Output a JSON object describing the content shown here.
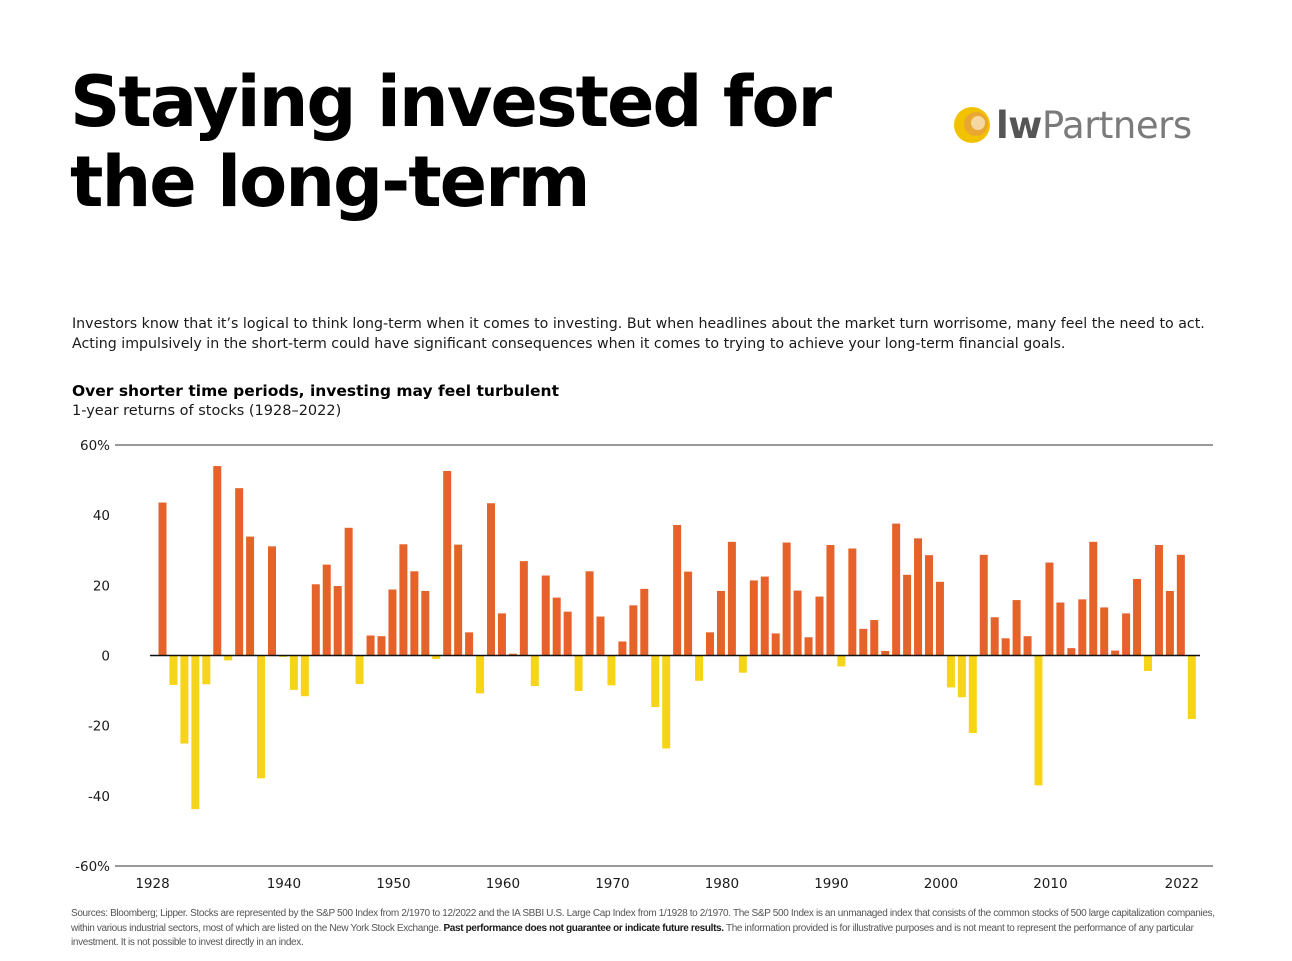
{
  "header": {
    "title_line1": "Staying invested for",
    "title_line2": "the long-term",
    "logo_part1": "lw",
    "logo_part2": "Partners"
  },
  "intro": {
    "line1": "Investors know that it’s logical to think long-term when it comes to investing. But when headlines about the market turn worrisome, many feel the need to act.",
    "line2": "Acting impulsively in the short-term could have significant consequences when it comes to trying to achieve your long-term financial goals."
  },
  "colors": {
    "positive": "#e5622a",
    "negative": "#f6d417",
    "logo_outer": "#f2c200",
    "logo_inner": "#e8a23a"
  },
  "chart_data": {
    "type": "bar",
    "title": "Over shorter time periods, investing may feel turbulent",
    "subtitle": "1-year returns of stocks (1928–2022)",
    "ylim": [
      -60,
      60
    ],
    "y_ticks": [
      {
        "value": 60,
        "label": "60%"
      },
      {
        "value": 40,
        "label": "40"
      },
      {
        "value": 20,
        "label": "20"
      },
      {
        "value": 0,
        "label": "0"
      },
      {
        "value": -20,
        "label": "-20"
      },
      {
        "value": -40,
        "label": "-40"
      },
      {
        "value": -60,
        "label": "-60%"
      }
    ],
    "x_ticks": [
      1928,
      1940,
      1950,
      1960,
      1970,
      1980,
      1990,
      2000,
      2010,
      2022
    ],
    "years": [
      1928,
      1929,
      1930,
      1931,
      1932,
      1933,
      1934,
      1935,
      1936,
      1937,
      1938,
      1939,
      1940,
      1941,
      1942,
      1943,
      1944,
      1945,
      1946,
      1947,
      1948,
      1949,
      1950,
      1951,
      1952,
      1953,
      1954,
      1955,
      1956,
      1957,
      1958,
      1959,
      1960,
      1961,
      1962,
      1963,
      1964,
      1965,
      1966,
      1967,
      1968,
      1969,
      1970,
      1971,
      1972,
      1973,
      1974,
      1975,
      1976,
      1977,
      1978,
      1979,
      1980,
      1981,
      1982,
      1983,
      1984,
      1985,
      1986,
      1987,
      1988,
      1989,
      1990,
      1991,
      1992,
      1993,
      1994,
      1995,
      1996,
      1997,
      1998,
      1999,
      2000,
      2001,
      2002,
      2003,
      2004,
      2005,
      2006,
      2007,
      2008,
      2009,
      2010,
      2011,
      2012,
      2013,
      2014,
      2015,
      2016,
      2017,
      2018,
      2019,
      2020,
      2021,
      2022
    ],
    "values": [
      43.6,
      -8.4,
      -25.1,
      -43.8,
      -8.2,
      54.0,
      -1.4,
      47.7,
      33.9,
      -35.0,
      31.1,
      -0.4,
      -9.8,
      -11.6,
      20.3,
      25.9,
      19.8,
      36.4,
      -8.1,
      5.7,
      5.5,
      18.8,
      31.7,
      24.0,
      18.4,
      -1.0,
      52.6,
      31.6,
      6.6,
      -10.8,
      43.4,
      12.0,
      0.5,
      26.9,
      -8.7,
      22.8,
      16.5,
      12.5,
      -10.1,
      24.0,
      11.1,
      -8.5,
      4.0,
      14.3,
      19.0,
      -14.7,
      -26.5,
      37.2,
      23.9,
      -7.2,
      6.6,
      18.4,
      32.4,
      -4.9,
      21.4,
      22.5,
      6.3,
      32.2,
      18.5,
      5.2,
      16.8,
      31.5,
      -3.1,
      30.5,
      7.6,
      10.1,
      1.3,
      37.6,
      23.0,
      33.4,
      28.6,
      21.0,
      -9.1,
      -11.9,
      -22.1,
      28.7,
      10.9,
      4.9,
      15.8,
      5.5,
      -37.0,
      26.5,
      15.1,
      2.1,
      16.0,
      32.4,
      13.7,
      1.4,
      12.0,
      21.8,
      -4.4,
      31.5,
      18.4,
      28.7,
      -18.1
    ]
  },
  "sources": {
    "text": "Sources: Bloomberg; Lipper. Stocks are represented by the S&P 500 Index from 2/1970 to 12/2022 and the IA SBBI U.S. Large Cap Index from 1/1928 to 2/1970. The S&P 500 Index is an unmanaged index that consists of the common stocks of 500 large capitalization companies, within various industrial sectors, most of which are listed on the New York Stock Exchange. ",
    "bold": "Past performance does not guarantee or indicate future results.",
    "text2": " The information provided is for illustrative purposes and is not meant to represent the performance of any particular investment. It is not possible to invest directly in an index."
  }
}
